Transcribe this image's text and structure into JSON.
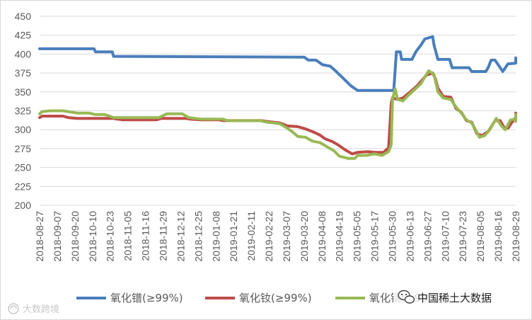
{
  "chart_data": {
    "type": "line",
    "title": "",
    "xlabel": "",
    "ylabel": "",
    "ylim": [
      200,
      450
    ],
    "y_ticks": [
      200,
      225,
      250,
      275,
      300,
      325,
      350,
      375,
      400,
      425,
      450
    ],
    "grid": "horizontal",
    "legend_position": "bottom",
    "x_start": "2018-08-27",
    "x_end": "2019-08-29",
    "x_ticks": [
      "2018-08-27",
      "2018-09-07",
      "2018-09-20",
      "2018-10-10",
      "2018-10-23",
      "2018-11-05",
      "2018-11-16",
      "2018-11-29",
      "2018-12-12",
      "2018-12-25",
      "2019-01-08",
      "2019-01-21",
      "2019-02-11",
      "2019-02-22",
      "2019-03-07",
      "2019-03-20",
      "2019-04-08",
      "2019-04-19",
      "2019-05-05",
      "2019-05-17",
      "2019-05-30",
      "2019-06-13",
      "2019-06-27",
      "2019-07-10",
      "2019-07-23",
      "2019-08-05",
      "2019-08-16",
      "2019-08-29"
    ],
    "series": [
      {
        "name": "氧化镨(≥99%)",
        "color": "#4a7ebb",
        "points": [
          [
            "2018-08-27",
            407
          ],
          [
            "2018-10-08",
            407
          ],
          [
            "2018-10-09",
            403
          ],
          [
            "2018-10-22",
            403
          ],
          [
            "2018-10-23",
            397
          ],
          [
            "2019-03-19",
            396
          ],
          [
            "2019-03-22",
            392
          ],
          [
            "2019-03-28",
            392
          ],
          [
            "2019-04-02",
            386
          ],
          [
            "2019-04-08",
            384
          ],
          [
            "2019-04-12",
            378
          ],
          [
            "2019-04-18",
            368
          ],
          [
            "2019-04-24",
            358
          ],
          [
            "2019-04-29",
            352
          ],
          [
            "2019-05-27",
            352
          ],
          [
            "2019-05-29",
            403
          ],
          [
            "2019-06-01",
            403
          ],
          [
            "2019-06-02",
            393
          ],
          [
            "2019-06-10",
            393
          ],
          [
            "2019-06-13",
            403
          ],
          [
            "2019-06-17",
            412
          ],
          [
            "2019-06-20",
            420
          ],
          [
            "2019-06-26",
            423
          ],
          [
            "2019-06-27",
            412
          ],
          [
            "2019-06-30",
            393
          ],
          [
            "2019-07-09",
            393
          ],
          [
            "2019-07-11",
            382
          ],
          [
            "2019-07-24",
            382
          ],
          [
            "2019-07-26",
            377
          ],
          [
            "2019-08-06",
            377
          ],
          [
            "2019-08-08",
            383
          ],
          [
            "2019-08-10",
            392
          ],
          [
            "2019-08-13",
            392
          ],
          [
            "2019-08-19",
            377
          ],
          [
            "2019-08-23",
            387
          ],
          [
            "2019-08-29",
            388
          ],
          [
            "2019-09-03",
            395
          ],
          [
            "2019-09-06",
            395
          ]
        ]
      },
      {
        "name": "氧化钕(≥99%)",
        "color": "#be4b48",
        "points": [
          [
            "2018-08-27",
            316
          ],
          [
            "2018-08-29",
            318
          ],
          [
            "2018-09-14",
            318
          ],
          [
            "2018-09-18",
            316
          ],
          [
            "2018-09-25",
            315
          ],
          [
            "2018-10-22",
            315
          ],
          [
            "2018-10-30",
            313
          ],
          [
            "2018-11-25",
            313
          ],
          [
            "2018-11-29",
            315
          ],
          [
            "2018-12-17",
            315
          ],
          [
            "2018-12-21",
            314
          ],
          [
            "2018-12-29",
            313
          ],
          [
            "2019-01-12",
            313
          ],
          [
            "2019-01-16",
            312
          ],
          [
            "2019-02-14",
            312
          ],
          [
            "2019-02-18",
            311
          ],
          [
            "2019-02-28",
            309
          ],
          [
            "2019-03-06",
            305
          ],
          [
            "2019-03-14",
            304
          ],
          [
            "2019-03-20",
            301
          ],
          [
            "2019-03-26",
            297
          ],
          [
            "2019-03-31",
            293
          ],
          [
            "2019-04-04",
            288
          ],
          [
            "2019-04-10",
            284
          ],
          [
            "2019-04-14",
            280
          ],
          [
            "2019-04-19",
            274
          ],
          [
            "2019-04-25",
            268
          ],
          [
            "2019-04-29",
            270
          ],
          [
            "2019-05-07",
            271
          ],
          [
            "2019-05-13",
            270
          ],
          [
            "2019-05-19",
            270
          ],
          [
            "2019-05-23",
            276
          ],
          [
            "2019-05-25",
            335
          ],
          [
            "2019-05-26",
            342
          ],
          [
            "2019-05-30",
            340
          ],
          [
            "2019-06-03",
            342
          ],
          [
            "2019-06-08",
            349
          ],
          [
            "2019-06-14",
            358
          ],
          [
            "2019-06-21",
            372
          ],
          [
            "2019-06-26",
            375
          ],
          [
            "2019-06-28",
            368
          ],
          [
            "2019-06-30",
            355
          ],
          [
            "2019-07-04",
            344
          ],
          [
            "2019-07-10",
            343
          ],
          [
            "2019-07-14",
            328
          ],
          [
            "2019-07-18",
            323
          ],
          [
            "2019-07-22",
            312
          ],
          [
            "2019-07-26",
            310
          ],
          [
            "2019-07-30",
            295
          ],
          [
            "2019-08-03",
            292
          ],
          [
            "2019-08-08",
            298
          ],
          [
            "2019-08-13",
            312
          ],
          [
            "2019-08-17",
            312
          ],
          [
            "2019-08-20",
            303
          ],
          [
            "2019-08-23",
            302
          ],
          [
            "2019-08-27",
            312
          ],
          [
            "2019-08-30",
            316
          ],
          [
            "2019-09-01",
            315
          ],
          [
            "2019-09-03",
            321
          ],
          [
            "2019-09-06",
            322
          ]
        ]
      },
      {
        "name": "氧化镝(≥99%)",
        "color": "#98b954",
        "points": [
          [
            "2018-08-27",
            321
          ],
          [
            "2018-08-29",
            324
          ],
          [
            "2018-09-04",
            325
          ],
          [
            "2018-09-14",
            325
          ],
          [
            "2018-09-18",
            324
          ],
          [
            "2018-09-25",
            322
          ],
          [
            "2018-10-04",
            322
          ],
          [
            "2018-10-09",
            320
          ],
          [
            "2018-10-16",
            320
          ],
          [
            "2018-10-20",
            318
          ],
          [
            "2018-10-23",
            316
          ],
          [
            "2018-11-27",
            316
          ],
          [
            "2018-12-03",
            321
          ],
          [
            "2018-12-15",
            321
          ],
          [
            "2018-12-20",
            316
          ],
          [
            "2018-12-29",
            314
          ],
          [
            "2019-01-15",
            314
          ],
          [
            "2019-01-19",
            312
          ],
          [
            "2019-02-13",
            312
          ],
          [
            "2019-02-18",
            310
          ],
          [
            "2019-02-28",
            308
          ],
          [
            "2019-03-05",
            303
          ],
          [
            "2019-03-10",
            297
          ],
          [
            "2019-03-14",
            291
          ],
          [
            "2019-03-20",
            290
          ],
          [
            "2019-03-25",
            285
          ],
          [
            "2019-03-31",
            283
          ],
          [
            "2019-04-04",
            279
          ],
          [
            "2019-04-11",
            272
          ],
          [
            "2019-04-15",
            265
          ],
          [
            "2019-04-22",
            262
          ],
          [
            "2019-04-27",
            262
          ],
          [
            "2019-04-29",
            266
          ],
          [
            "2019-05-06",
            266
          ],
          [
            "2019-05-12",
            268
          ],
          [
            "2019-05-18",
            266
          ],
          [
            "2019-05-23",
            271
          ],
          [
            "2019-05-25",
            280
          ],
          [
            "2019-05-26",
            340
          ],
          [
            "2019-05-28",
            354
          ],
          [
            "2019-05-30",
            340
          ],
          [
            "2019-06-03",
            338
          ],
          [
            "2019-06-07",
            345
          ],
          [
            "2019-06-12",
            353
          ],
          [
            "2019-06-17",
            361
          ],
          [
            "2019-06-20",
            370
          ],
          [
            "2019-06-23",
            378
          ],
          [
            "2019-06-27",
            373
          ],
          [
            "2019-06-30",
            350
          ],
          [
            "2019-07-04",
            342
          ],
          [
            "2019-07-10",
            340
          ],
          [
            "2019-07-14",
            330
          ],
          [
            "2019-07-18",
            322
          ],
          [
            "2019-07-22",
            313
          ],
          [
            "2019-07-26",
            309
          ],
          [
            "2019-07-29",
            300
          ],
          [
            "2019-08-01",
            290
          ],
          [
            "2019-08-05",
            292
          ],
          [
            "2019-08-09",
            300
          ],
          [
            "2019-08-14",
            315
          ],
          [
            "2019-08-18",
            305
          ],
          [
            "2019-08-21",
            300
          ],
          [
            "2019-08-25",
            313
          ],
          [
            "2019-08-29",
            314
          ],
          [
            "2019-09-01",
            311
          ],
          [
            "2019-09-03",
            319
          ],
          [
            "2019-09-06",
            320
          ]
        ]
      }
    ]
  },
  "watermarks": {
    "source": "中国稀土大数据",
    "corner": "大数跨境"
  }
}
